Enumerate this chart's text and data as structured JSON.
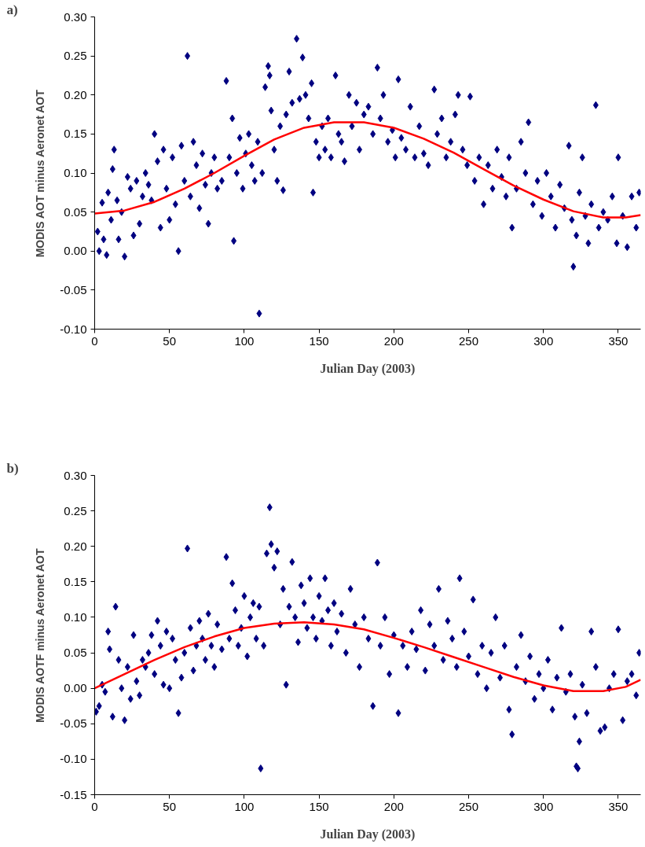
{
  "chart_data": [
    {
      "type": "scatter",
      "annotations": [
        "a)"
      ],
      "xlabel": "Julian Day (2003)",
      "ylabel": "MODIS AOT minus Aeronet AOT",
      "xlim": [
        0,
        365
      ],
      "xticks": [
        0,
        50,
        100,
        150,
        200,
        250,
        300,
        350
      ],
      "ylim": [
        -0.1,
        0.3
      ],
      "yticks": [
        {
          "value": -0.1,
          "label": "-0.10"
        },
        {
          "value": -0.05,
          "label": "-0.05"
        },
        {
          "value": 0,
          "label": "0.00"
        },
        {
          "value": 0.05,
          "label": "0.05"
        },
        {
          "value": 0.1,
          "label": "0.10"
        },
        {
          "value": 0.15,
          "label": "0.15"
        },
        {
          "value": 0.2,
          "label": "0.20"
        },
        {
          "value": 0.25,
          "label": "0.25"
        },
        {
          "value": 0.3,
          "label": "0.30"
        }
      ],
      "grid": false,
      "series": [
        {
          "marker": "diamond",
          "color": "#000080",
          "x": [
            2,
            3,
            5,
            6,
            8,
            9,
            11,
            12,
            13,
            15,
            16,
            18,
            20,
            22,
            24,
            26,
            28,
            30,
            32,
            34,
            36,
            38,
            40,
            42,
            44,
            46,
            48,
            50,
            52,
            54,
            56,
            58,
            60,
            62,
            64,
            66,
            68,
            70,
            72,
            74,
            76,
            78,
            80,
            82,
            85,
            88,
            90,
            92,
            93,
            95,
            97,
            99,
            101,
            103,
            105,
            107,
            109,
            110,
            112,
            114,
            116,
            117,
            118,
            120,
            122,
            124,
            126,
            128,
            130,
            132,
            135,
            137,
            139,
            141,
            143,
            145,
            146,
            148,
            150,
            152,
            154,
            156,
            158,
            161,
            163,
            165,
            167,
            170,
            172,
            175,
            177,
            180,
            183,
            186,
            189,
            191,
            193,
            196,
            199,
            201,
            203,
            205,
            208,
            211,
            214,
            217,
            220,
            223,
            227,
            229,
            232,
            235,
            238,
            241,
            243,
            246,
            249,
            251,
            254,
            257,
            260,
            263,
            266,
            269,
            272,
            275,
            277,
            279,
            282,
            285,
            288,
            290,
            293,
            296,
            299,
            302,
            305,
            308,
            311,
            314,
            317,
            319,
            320,
            322,
            324,
            326,
            328,
            330,
            332,
            335,
            337,
            340,
            343,
            346,
            349,
            350,
            353,
            356,
            359,
            362,
            364
          ],
          "values": [
            0.025,
            0.0,
            0.062,
            0.015,
            -0.005,
            0.075,
            0.04,
            0.105,
            0.13,
            0.065,
            0.015,
            0.05,
            -0.007,
            0.095,
            0.08,
            0.02,
            0.09,
            0.035,
            0.07,
            0.1,
            0.085,
            0.065,
            0.15,
            0.115,
            0.03,
            0.13,
            0.08,
            0.04,
            0.12,
            0.06,
            0.0,
            0.135,
            0.09,
            0.25,
            0.07,
            0.14,
            0.11,
            0.055,
            0.125,
            0.085,
            0.035,
            0.1,
            0.12,
            0.08,
            0.09,
            0.218,
            0.12,
            0.17,
            0.013,
            0.1,
            0.145,
            0.08,
            0.125,
            0.15,
            0.11,
            0.09,
            0.14,
            -0.08,
            0.1,
            0.21,
            0.237,
            0.225,
            0.18,
            0.13,
            0.09,
            0.16,
            0.078,
            0.175,
            0.23,
            0.19,
            0.272,
            0.195,
            0.248,
            0.2,
            0.17,
            0.215,
            0.075,
            0.14,
            0.12,
            0.16,
            0.13,
            0.17,
            0.12,
            0.225,
            0.15,
            0.14,
            0.115,
            0.2,
            0.16,
            0.19,
            0.13,
            0.175,
            0.185,
            0.15,
            0.235,
            0.17,
            0.2,
            0.14,
            0.155,
            0.12,
            0.22,
            0.145,
            0.13,
            0.185,
            0.12,
            0.16,
            0.125,
            0.11,
            0.207,
            0.15,
            0.17,
            0.12,
            0.14,
            0.175,
            0.2,
            0.13,
            0.11,
            0.198,
            0.09,
            0.12,
            0.06,
            0.11,
            0.08,
            0.13,
            0.095,
            0.07,
            0.12,
            0.03,
            0.08,
            0.14,
            0.1,
            0.165,
            0.06,
            0.09,
            0.045,
            0.1,
            0.07,
            0.03,
            0.085,
            0.055,
            0.135,
            0.04,
            -0.02,
            0.02,
            0.075,
            0.12,
            0.045,
            0.01,
            0.06,
            0.187,
            0.03,
            0.05,
            0.04,
            0.07,
            0.01,
            0.12,
            0.045,
            0.005,
            0.07,
            0.03,
            0.075
          ]
        },
        {
          "type": "line",
          "color": "#ff0000",
          "x": [
            0,
            20,
            40,
            60,
            80,
            100,
            120,
            140,
            160,
            180,
            200,
            220,
            240,
            260,
            280,
            300,
            320,
            340,
            355,
            365
          ],
          "values": [
            0.048,
            0.052,
            0.063,
            0.08,
            0.1,
            0.122,
            0.143,
            0.158,
            0.165,
            0.165,
            0.158,
            0.144,
            0.126,
            0.105,
            0.084,
            0.066,
            0.051,
            0.043,
            0.043,
            0.046
          ]
        }
      ]
    },
    {
      "type": "scatter",
      "annotations": [
        "b)"
      ],
      "xlabel": "Julian Day (2003)",
      "ylabel": "MODIS AOTF minus Aeronet AOT",
      "xlim": [
        0,
        365
      ],
      "xticks": [
        0,
        50,
        100,
        150,
        200,
        250,
        300,
        350
      ],
      "ylim": [
        -0.15,
        0.3
      ],
      "yticks": [
        {
          "value": -0.15,
          "label": "-0.15"
        },
        {
          "value": -0.1,
          "label": "-0.10"
        },
        {
          "value": -0.05,
          "label": "-0.05"
        },
        {
          "value": 0,
          "label": "0.00"
        },
        {
          "value": 0.05,
          "label": "0.05"
        },
        {
          "value": 0.1,
          "label": "0.10"
        },
        {
          "value": 0.15,
          "label": "0.15"
        },
        {
          "value": 0.2,
          "label": "0.20"
        },
        {
          "value": 0.25,
          "label": "0.25"
        },
        {
          "value": 0.3,
          "label": "0.30"
        }
      ],
      "grid": false,
      "series": [
        {
          "marker": "diamond",
          "color": "#000080",
          "x": [
            1,
            3,
            5,
            7,
            9,
            10,
            12,
            14,
            16,
            18,
            20,
            22,
            24,
            26,
            28,
            30,
            32,
            34,
            36,
            38,
            40,
            42,
            44,
            46,
            48,
            50,
            52,
            54,
            56,
            58,
            60,
            62,
            64,
            66,
            68,
            70,
            72,
            74,
            76,
            78,
            80,
            82,
            85,
            88,
            90,
            92,
            94,
            96,
            98,
            100,
            102,
            104,
            106,
            108,
            110,
            111,
            113,
            115,
            117,
            118,
            120,
            122,
            124,
            126,
            128,
            130,
            132,
            134,
            136,
            138,
            140,
            142,
            144,
            146,
            148,
            150,
            152,
            154,
            156,
            158,
            160,
            162,
            165,
            168,
            171,
            174,
            177,
            180,
            183,
            186,
            189,
            191,
            194,
            197,
            200,
            203,
            206,
            209,
            212,
            215,
            218,
            221,
            224,
            227,
            230,
            233,
            236,
            239,
            242,
            244,
            247,
            250,
            253,
            256,
            259,
            262,
            265,
            268,
            271,
            274,
            277,
            279,
            282,
            285,
            288,
            291,
            294,
            297,
            300,
            303,
            306,
            309,
            312,
            315,
            318,
            321,
            322,
            323,
            324,
            326,
            329,
            332,
            335,
            338,
            341,
            344,
            347,
            350,
            353,
            356,
            359,
            362,
            364
          ],
          "values": [
            -0.033,
            -0.025,
            0.005,
            -0.005,
            0.08,
            0.055,
            -0.04,
            0.115,
            0.04,
            0.0,
            -0.045,
            0.03,
            -0.015,
            0.075,
            0.01,
            -0.01,
            0.04,
            0.03,
            0.05,
            0.075,
            0.02,
            0.095,
            0.06,
            0.005,
            0.08,
            0.0,
            0.07,
            0.04,
            -0.035,
            0.015,
            0.05,
            0.197,
            0.085,
            0.025,
            0.06,
            0.095,
            0.07,
            0.04,
            0.105,
            0.06,
            0.03,
            0.09,
            0.055,
            0.185,
            0.07,
            0.148,
            0.11,
            0.06,
            0.085,
            0.13,
            0.045,
            0.1,
            0.12,
            0.07,
            0.115,
            -0.113,
            0.06,
            0.19,
            0.255,
            0.203,
            0.17,
            0.193,
            0.09,
            0.14,
            0.005,
            0.115,
            0.178,
            0.1,
            0.065,
            0.145,
            0.12,
            0.085,
            0.155,
            0.1,
            0.07,
            0.13,
            0.095,
            0.155,
            0.11,
            0.06,
            0.12,
            0.08,
            0.105,
            0.05,
            0.14,
            0.09,
            0.03,
            0.1,
            0.07,
            -0.025,
            0.177,
            0.06,
            0.1,
            0.02,
            0.075,
            -0.035,
            0.06,
            0.03,
            0.08,
            0.055,
            0.11,
            0.025,
            0.09,
            0.06,
            0.14,
            0.04,
            0.095,
            0.07,
            0.03,
            0.155,
            0.08,
            0.045,
            0.125,
            0.02,
            0.06,
            0.0,
            0.05,
            0.1,
            0.015,
            0.06,
            -0.03,
            -0.065,
            0.03,
            0.075,
            0.01,
            0.045,
            -0.015,
            0.02,
            0.0,
            0.04,
            -0.03,
            0.015,
            0.085,
            -0.005,
            0.02,
            -0.04,
            -0.11,
            -0.113,
            -0.075,
            0.005,
            -0.035,
            0.08,
            0.03,
            -0.06,
            -0.055,
            0.0,
            0.02,
            0.083,
            -0.045,
            0.01,
            0.02,
            -0.01,
            0.05
          ]
        },
        {
          "type": "line",
          "color": "#ff0000",
          "x": [
            0,
            20,
            40,
            60,
            80,
            100,
            120,
            140,
            160,
            180,
            200,
            220,
            240,
            260,
            280,
            300,
            320,
            340,
            355,
            365
          ],
          "values": [
            0.0,
            0.02,
            0.04,
            0.058,
            0.073,
            0.085,
            0.091,
            0.093,
            0.09,
            0.083,
            0.071,
            0.058,
            0.044,
            0.03,
            0.016,
            0.004,
            -0.004,
            -0.004,
            0.002,
            0.012
          ]
        }
      ]
    }
  ]
}
